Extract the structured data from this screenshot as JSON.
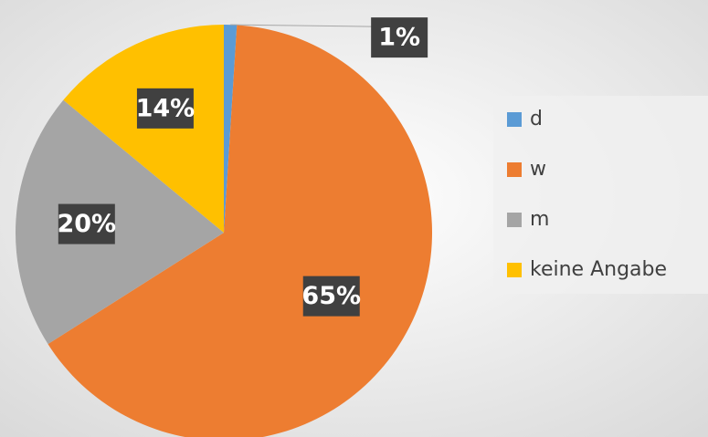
{
  "chart_data": {
    "type": "pie",
    "categories": [
      "d",
      "w",
      "m",
      "keine Angabe"
    ],
    "values": [
      1,
      65,
      20,
      14
    ],
    "value_labels": [
      "1%",
      "65%",
      "20%",
      "14%"
    ],
    "colors": [
      "#5b9bd5",
      "#ed7d31",
      "#a5a5a5",
      "#ffc000"
    ],
    "legend": "right"
  }
}
